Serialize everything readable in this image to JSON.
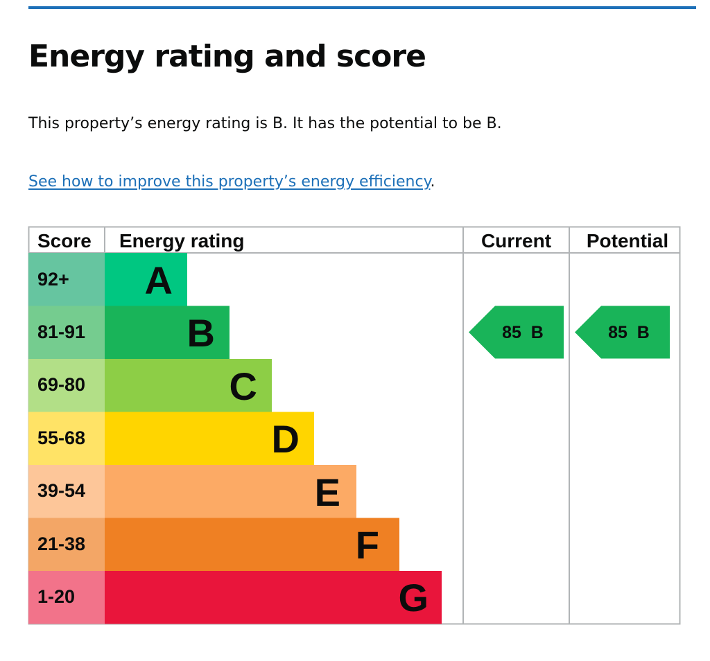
{
  "heading": "Energy rating and score",
  "summary": "This property’s energy rating is B. It has the potential to be B.",
  "improve_link": {
    "text": "See how to improve this property’s energy efficiency",
    "after": "."
  },
  "table": {
    "headers": {
      "score": "Score",
      "rating": "Energy rating",
      "current": "Current",
      "potential": "Potential"
    },
    "bands": [
      {
        "letter": "A",
        "range": "92+",
        "color": "#00c781",
        "score_bg": "#66c5a0"
      },
      {
        "letter": "B",
        "range": "81-91",
        "color": "#19b459",
        "score_bg": "#75cc8f"
      },
      {
        "letter": "C",
        "range": "69-80",
        "color": "#8dce46",
        "score_bg": "#b2df87"
      },
      {
        "letter": "D",
        "range": "55-68",
        "color": "#ffd500",
        "score_bg": "#ffe366"
      },
      {
        "letter": "E",
        "range": "39-54",
        "color": "#fcaa65",
        "score_bg": "#fdc699"
      },
      {
        "letter": "F",
        "range": "21-38",
        "color": "#ef8023",
        "score_bg": "#f3a666"
      },
      {
        "letter": "G",
        "range": "1-20",
        "color": "#e9153b",
        "score_bg": "#f2738a"
      }
    ],
    "current": {
      "score": "85",
      "letter": "B",
      "label": "85  B",
      "color": "#19b459"
    },
    "potential": {
      "score": "85",
      "letter": "B",
      "label": "85  B",
      "color": "#19b459"
    }
  }
}
